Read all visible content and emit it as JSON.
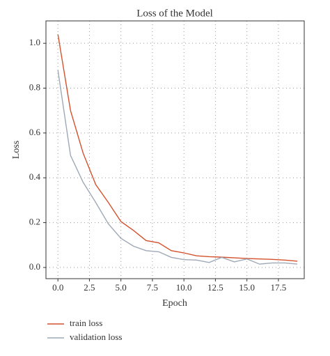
{
  "chart_data": {
    "type": "line",
    "title": "Loss of the Model",
    "x_label": "Epoch",
    "y_label": "Loss",
    "x": [
      0,
      1,
      2,
      3,
      4,
      5,
      6,
      7,
      8,
      9,
      10,
      11,
      12,
      13,
      14,
      15,
      16,
      17,
      18,
      19
    ],
    "series": [
      {
        "name": "train loss",
        "color": "#d4512c",
        "values": [
          1.04,
          0.7,
          0.51,
          0.37,
          0.29,
          0.205,
          0.165,
          0.12,
          0.11,
          0.075,
          0.065,
          0.052,
          0.048,
          0.046,
          0.043,
          0.04,
          0.038,
          0.036,
          0.033,
          0.028
        ]
      },
      {
        "name": "validation loss",
        "color": "#9ea8b6",
        "values": [
          0.88,
          0.5,
          0.38,
          0.29,
          0.195,
          0.13,
          0.095,
          0.075,
          0.07,
          0.045,
          0.035,
          0.033,
          0.022,
          0.045,
          0.025,
          0.038,
          0.015,
          0.02,
          0.02,
          0.015
        ]
      }
    ],
    "xlim": [
      -0.95,
      19.55
    ],
    "ylim": [
      -0.05,
      1.1
    ],
    "xticks": [
      {
        "value": 0,
        "label": "0.0"
      },
      2.5,
      {
        "value": 5,
        "label": "5.0"
      },
      7.5,
      {
        "value": 10,
        "label": "10.0"
      },
      12.5,
      {
        "value": 15,
        "label": "15.0"
      },
      17.5
    ],
    "yticks": [
      {
        "value": 0,
        "label": "0.0"
      },
      0.2,
      0.4,
      0.6,
      0.8,
      {
        "value": 1,
        "label": "1.0"
      }
    ],
    "grid": true,
    "legend": "bottom-left"
  }
}
